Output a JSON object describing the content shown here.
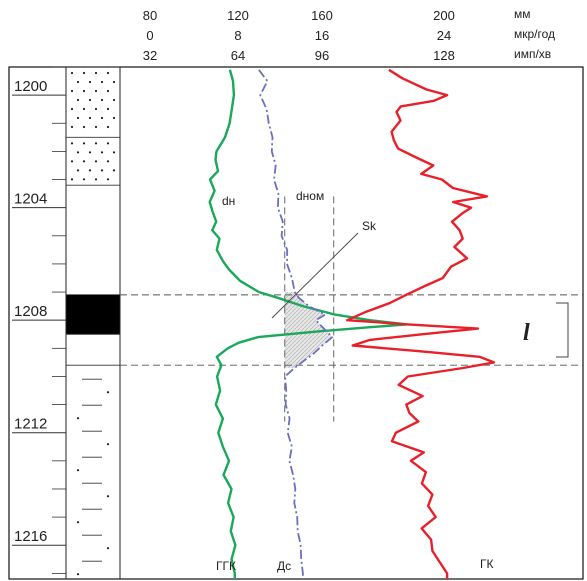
{
  "chart_data": {
    "type": "line",
    "depth_range": [
      1199,
      1217.2
    ],
    "depth_ticks": [
      "1200",
      "1204",
      "1208",
      "1212",
      "1216"
    ],
    "scales": {
      "row1": [
        "80",
        "120",
        "160",
        "200",
        "мм"
      ],
      "row2": [
        "0",
        "8",
        "16",
        "24",
        "мкр/год"
      ],
      "row3": [
        "32",
        "64",
        "96",
        "128",
        "имп/хв"
      ]
    },
    "lithology": [
      {
        "type": "sand",
        "top": 1199,
        "bottom": 1201.5
      },
      {
        "type": "sand",
        "top": 1201.5,
        "bottom": 1203.2
      },
      {
        "type": "clay",
        "top": 1203.2,
        "bottom": 1207.1
      },
      {
        "type": "coal",
        "top": 1207.1,
        "bottom": 1208.5
      },
      {
        "type": "clay",
        "top": 1208.5,
        "bottom": 1209.6
      },
      {
        "type": "siltstone",
        "top": 1209.6,
        "bottom": 1217.2
      }
    ],
    "series": [
      {
        "name": "ГГК",
        "color": "#1aa85a",
        "scale_min": 32,
        "scale_max": 128,
        "unit": "имп/хв",
        "depth": [
          1199.1,
          1199.5,
          1200.0,
          1200.5,
          1201.0,
          1201.5,
          1202.0,
          1202.3,
          1202.7,
          1203.0,
          1203.4,
          1203.8,
          1204.1,
          1204.5,
          1204.8,
          1205.1,
          1205.5,
          1205.9,
          1206.2,
          1206.6,
          1207.0,
          1207.2,
          1207.5,
          1207.8,
          1208.0,
          1208.15,
          1208.25,
          1208.4,
          1208.6,
          1208.8,
          1209.0,
          1209.3,
          1209.6,
          1210.0,
          1210.5,
          1211.0,
          1211.5,
          1212.0,
          1212.5,
          1213.0,
          1213.5,
          1214.0,
          1214.5,
          1215.0,
          1215.5,
          1216.0,
          1216.5,
          1217.0,
          1217.2
        ],
        "values": [
          58.1,
          59.1,
          59.4,
          58.7,
          58.0,
          56.5,
          53.7,
          53.4,
          54.2,
          51.6,
          53.1,
          51.5,
          52.3,
          53.6,
          52.3,
          54.7,
          53.8,
          55.8,
          57.8,
          61.4,
          67.6,
          73.6,
          81.9,
          92.4,
          103.8,
          115.9,
          103.8,
          86.9,
          67.3,
          61.0,
          57.4,
          53.8,
          55.3,
          53.9,
          54.9,
          53.5,
          55.8,
          54.3,
          55.8,
          57.8,
          56.0,
          58.6,
          57.5,
          59.3,
          58.4,
          59.9,
          58.6,
          59.7,
          59.7
        ]
      },
      {
        "name": "Дс",
        "color": "#6a6fbf",
        "scale_min": 80,
        "scale_max": 200,
        "unit": "мм",
        "depth": [
          1199.1,
          1199.5,
          1200.0,
          1200.5,
          1201.0,
          1201.5,
          1202.0,
          1202.5,
          1203.0,
          1203.5,
          1204.0,
          1204.5,
          1205.0,
          1205.5,
          1206.0,
          1206.5,
          1207.0,
          1207.2,
          1207.5,
          1207.8,
          1208.0,
          1208.3,
          1208.6,
          1208.9,
          1209.2,
          1209.5,
          1209.7,
          1210.0,
          1210.5,
          1211.0,
          1211.5,
          1212.0,
          1212.5,
          1213.0,
          1213.5,
          1214.0,
          1214.5,
          1215.0,
          1215.5,
          1216.0,
          1216.5,
          1217.0,
          1217.2
        ],
        "values": [
          124.4,
          127.9,
          125.0,
          127.6,
          128.5,
          130.0,
          129.7,
          131.3,
          130.6,
          132.4,
          132.2,
          134.2,
          133.7,
          136.0,
          135.9,
          137.9,
          139.1,
          140.7,
          144.8,
          151.5,
          147.7,
          151.0,
          154.4,
          150.3,
          146.6,
          141.9,
          139.0,
          135.1,
          135.6,
          135.4,
          137.0,
          136.2,
          137.9,
          136.9,
          138.4,
          139.3,
          138.9,
          140.1,
          140.3,
          141.5,
          141.7,
          142.4,
          142.4
        ]
      },
      {
        "name": "ГК",
        "color": "#e8202a",
        "scale_min": 32,
        "scale_max": 128,
        "unit": "имп/хв",
        "depth": [
          1199.1,
          1199.4,
          1199.8,
          1200.0,
          1200.2,
          1200.4,
          1200.6,
          1200.9,
          1201.3,
          1201.6,
          1201.9,
          1202.2,
          1202.5,
          1202.8,
          1203.0,
          1203.3,
          1203.6,
          1203.8,
          1204.0,
          1204.2,
          1204.5,
          1204.8,
          1205.1,
          1205.4,
          1205.8,
          1206.1,
          1206.5,
          1206.8,
          1207.1,
          1207.4,
          1207.7,
          1208.0,
          1208.15,
          1208.3,
          1208.5,
          1208.7,
          1208.9,
          1209.1,
          1209.3,
          1209.5,
          1209.7,
          1210.0,
          1210.3,
          1210.7,
          1211.0,
          1211.3,
          1211.6,
          1212.0,
          1212.3,
          1212.7,
          1213.0,
          1213.4,
          1213.8,
          1214.2,
          1214.6,
          1215.0,
          1215.4,
          1215.8,
          1216.2,
          1216.6,
          1217.0,
          1217.2
        ],
        "values": [
          110.0,
          114.4,
          122.3,
          129.0,
          124.7,
          113.9,
          112.5,
          113.8,
          110.9,
          111.6,
          113.0,
          118.6,
          124.5,
          120.6,
          127.3,
          130.9,
          142.0,
          131.0,
          136.8,
          134.0,
          130.6,
          133.1,
          134.1,
          131.4,
          135.5,
          130.3,
          127.6,
          121.5,
          115.6,
          110.1,
          102.6,
          96.4,
          116.3,
          139.1,
          120.8,
          103.8,
          98.2,
          119.5,
          139.6,
          144.3,
          134.2,
          116.2,
          113.2,
          121.0,
          115.7,
          116.7,
          119.6,
          112.3,
          111.0,
          121.4,
          117.2,
          122.1,
          120.8,
          124.2,
          122.8,
          125.3,
          120.7,
          123.8,
          124.2,
          126.6,
          129.0,
          129.0
        ]
      }
    ],
    "annotations": {
      "d_nom": "dном",
      "d_n": "dн",
      "sk": "Sk",
      "layer_mark": "l",
      "label_ggk": "ГГК",
      "label_ds": "Дс",
      "label_gk": "ГК"
    }
  }
}
